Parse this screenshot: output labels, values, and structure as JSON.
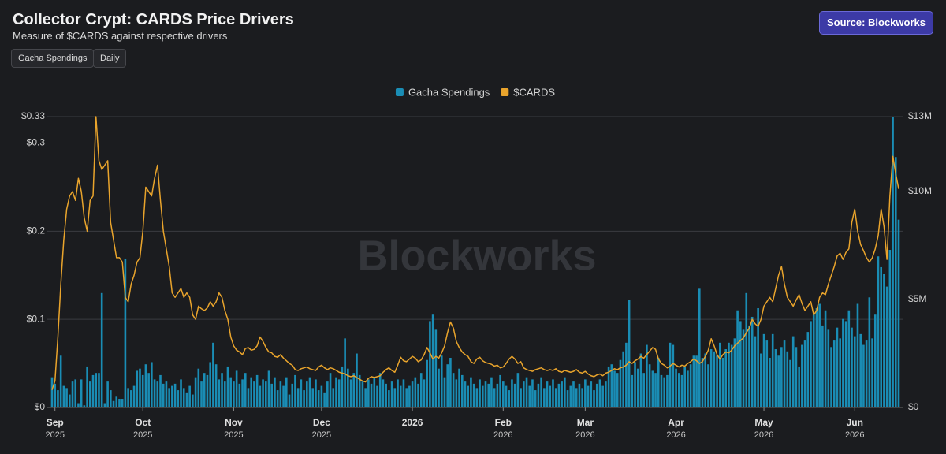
{
  "header": {
    "title": "Collector Crypt: CARDS Price Drivers",
    "subtitle": "Measure of $CARDS against respective drivers",
    "controls": [
      "Gacha Spendings",
      "Daily"
    ],
    "source": "Source: Blockworks",
    "watermark": "Blockworks"
  },
  "chart_data": {
    "type": "combo",
    "series": [
      {
        "name": "Gacha Spendings",
        "type": "bar",
        "axis": "y2",
        "color": "#1a8db5",
        "values": [
          1.4,
          1.1,
          0.8,
          2.4,
          1.0,
          0.9,
          0.6,
          1.2,
          1.3,
          0.2,
          1.3,
          0.1,
          1.9,
          1.2,
          1.5,
          1.6,
          1.6,
          5.3,
          0.2,
          1.2,
          0.8,
          0.3,
          0.5,
          0.4,
          0.4,
          6.9,
          0.9,
          0.8,
          1.0,
          1.7,
          1.8,
          1.5,
          2.0,
          1.6,
          2.1,
          1.3,
          1.2,
          1.5,
          1.1,
          1.2,
          0.9,
          1.0,
          1.1,
          0.8,
          1.3,
          0.9,
          0.7,
          1.0,
          0.6,
          1.4,
          1.8,
          1.2,
          1.6,
          1.5,
          2.1,
          3.0,
          2.0,
          1.3,
          1.6,
          1.2,
          1.9,
          1.4,
          1.2,
          1.7,
          1.1,
          1.3,
          1.6,
          0.9,
          1.4,
          1.2,
          1.5,
          1.0,
          1.3,
          1.2,
          1.7,
          1.1,
          1.4,
          0.8,
          1.2,
          1.0,
          1.4,
          0.6,
          1.1,
          1.5,
          0.9,
          1.3,
          0.8,
          1.2,
          1.4,
          0.9,
          1.3,
          0.8,
          1.0,
          0.7,
          1.2,
          1.6,
          0.9,
          1.4,
          1.3,
          1.9,
          3.2,
          1.8,
          1.3,
          1.6,
          2.5,
          1.5,
          1.2,
          0.9,
          1.3,
          1.1,
          1.4,
          1.0,
          1.6,
          1.3,
          1.1,
          0.8,
          1.2,
          0.9,
          1.3,
          1.0,
          1.3,
          0.9,
          1.0,
          1.2,
          1.4,
          1.1,
          1.6,
          1.3,
          2.2,
          4.0,
          4.3,
          3.6,
          1.8,
          2.4,
          1.4,
          2.0,
          2.3,
          1.6,
          1.3,
          1.8,
          1.5,
          1.2,
          1.0,
          1.4,
          1.1,
          0.9,
          1.3,
          1.0,
          1.2,
          1.1,
          1.4,
          0.9,
          1.1,
          1.5,
          1.2,
          1.0,
          0.8,
          1.3,
          1.1,
          1.6,
          0.9,
          1.2,
          1.4,
          1.0,
          1.3,
          0.8,
          1.1,
          1.4,
          0.9,
          1.2,
          1.0,
          1.3,
          0.9,
          1.1,
          1.2,
          1.4,
          0.8,
          1.0,
          1.2,
          0.9,
          1.1,
          0.9,
          1.3,
          1.0,
          1.2,
          0.8,
          1.1,
          1.3,
          1.0,
          1.2,
          1.9,
          2.0,
          1.7,
          1.6,
          2.2,
          2.6,
          3.0,
          5.0,
          1.5,
          2.1,
          1.8,
          2.5,
          1.6,
          2.9,
          2.0,
          1.7,
          1.6,
          2.3,
          1.5,
          1.4,
          1.5,
          3.0,
          2.9,
          1.8,
          1.6,
          1.5,
          1.9,
          1.7,
          2.0,
          2.4,
          2.4,
          5.5,
          2.3,
          2.5,
          2.0,
          2.7,
          2.6,
          2.4,
          3.0,
          2.3,
          2.7,
          3.0,
          2.9,
          3.2,
          4.5,
          4.0,
          3.6,
          5.3,
          3.8,
          4.2,
          3.3,
          4.6,
          2.5,
          3.4,
          3.1,
          2.3,
          3.4,
          2.7,
          2.4,
          2.8,
          3.1,
          2.6,
          2.2,
          3.3,
          2.8,
          1.9,
          2.9,
          3.1,
          3.5,
          4.0,
          4.3,
          4.6,
          4.8,
          3.8,
          4.5,
          3.6,
          2.8,
          3.1,
          3.7,
          3.2,
          4.1,
          4.0,
          4.5,
          3.7,
          3.3,
          4.8,
          3.4,
          2.9,
          3.1,
          5.1,
          3.2,
          4.3,
          7.0,
          6.5,
          6.2,
          5.6,
          7.3,
          13.47,
          11.6,
          8.7
        ]
      },
      {
        "name": "$CARDS",
        "type": "line",
        "axis": "y",
        "color": "#e9a42c",
        "values": [
          0.02,
          0.03,
          0.08,
          0.14,
          0.19,
          0.225,
          0.24,
          0.245,
          0.235,
          0.26,
          0.245,
          0.215,
          0.2,
          0.235,
          0.24,
          0.33,
          0.28,
          0.27,
          0.275,
          0.28,
          0.21,
          0.19,
          0.17,
          0.17,
          0.165,
          0.125,
          0.12,
          0.14,
          0.15,
          0.165,
          0.17,
          0.2,
          0.25,
          0.245,
          0.24,
          0.26,
          0.275,
          0.235,
          0.2,
          0.18,
          0.16,
          0.13,
          0.125,
          0.13,
          0.135,
          0.125,
          0.13,
          0.125,
          0.105,
          0.1,
          0.115,
          0.112,
          0.11,
          0.113,
          0.12,
          0.115,
          0.12,
          0.13,
          0.125,
          0.11,
          0.1,
          0.08,
          0.07,
          0.065,
          0.063,
          0.06,
          0.067,
          0.068,
          0.065,
          0.066,
          0.07,
          0.08,
          0.075,
          0.068,
          0.063,
          0.062,
          0.058,
          0.057,
          0.06,
          0.056,
          0.053,
          0.05,
          0.048,
          0.043,
          0.042,
          0.044,
          0.045,
          0.046,
          0.044,
          0.043,
          0.042,
          0.046,
          0.048,
          0.045,
          0.043,
          0.045,
          0.044,
          0.042,
          0.04,
          0.039,
          0.038,
          0.036,
          0.035,
          0.036,
          0.034,
          0.032,
          0.03,
          0.029,
          0.033,
          0.035,
          0.034,
          0.035,
          0.036,
          0.04,
          0.043,
          0.045,
          0.042,
          0.04,
          0.048,
          0.057,
          0.053,
          0.052,
          0.055,
          0.058,
          0.056,
          0.052,
          0.054,
          0.06,
          0.068,
          0.062,
          0.055,
          0.058,
          0.056,
          0.062,
          0.07,
          0.085,
          0.097,
          0.09,
          0.075,
          0.068,
          0.063,
          0.06,
          0.058,
          0.052,
          0.05,
          0.055,
          0.057,
          0.053,
          0.051,
          0.05,
          0.049,
          0.047,
          0.048,
          0.045,
          0.046,
          0.05,
          0.055,
          0.058,
          0.055,
          0.05,
          0.052,
          0.045,
          0.043,
          0.042,
          0.041,
          0.043,
          0.044,
          0.045,
          0.043,
          0.042,
          0.043,
          0.042,
          0.044,
          0.041,
          0.04,
          0.042,
          0.041,
          0.04,
          0.041,
          0.043,
          0.04,
          0.039,
          0.041,
          0.038,
          0.036,
          0.035,
          0.037,
          0.038,
          0.036,
          0.039,
          0.04,
          0.042,
          0.044,
          0.043,
          0.045,
          0.046,
          0.048,
          0.052,
          0.05,
          0.053,
          0.055,
          0.058,
          0.056,
          0.06,
          0.064,
          0.068,
          0.066,
          0.055,
          0.05,
          0.048,
          0.045,
          0.047,
          0.05,
          0.048,
          0.046,
          0.048,
          0.047,
          0.05,
          0.052,
          0.055,
          0.053,
          0.05,
          0.052,
          0.058,
          0.065,
          0.078,
          0.07,
          0.06,
          0.055,
          0.06,
          0.063,
          0.062,
          0.065,
          0.07,
          0.073,
          0.076,
          0.079,
          0.085,
          0.09,
          0.1,
          0.095,
          0.092,
          0.1,
          0.115,
          0.12,
          0.125,
          0.12,
          0.135,
          0.15,
          0.16,
          0.14,
          0.125,
          0.12,
          0.115,
          0.122,
          0.128,
          0.118,
          0.11,
          0.115,
          0.12,
          0.105,
          0.11,
          0.125,
          0.13,
          0.128,
          0.14,
          0.15,
          0.16,
          0.172,
          0.175,
          0.168,
          0.176,
          0.18,
          0.21,
          0.225,
          0.2,
          0.185,
          0.178,
          0.17,
          0.165,
          0.17,
          0.18,
          0.195,
          0.225,
          0.205,
          0.168,
          0.24,
          0.285,
          0.265,
          0.248
        ]
      }
    ],
    "ylim": [
      0,
      0.33
    ],
    "yticks": [
      {
        "value": 0,
        "label": "$0"
      },
      {
        "value": 0.1,
        "label": "$0.1"
      },
      {
        "value": 0.2,
        "label": "$0.2"
      },
      {
        "value": 0.3,
        "label": "$0.3"
      },
      {
        "value": 0.33,
        "label": "$0.33"
      }
    ],
    "y2lim": [
      0,
      13.47
    ],
    "y2ticks": [
      {
        "value": 0,
        "label": "$0"
      },
      {
        "value": 5,
        "label": "$5M"
      },
      {
        "value": 10,
        "label": "$10M"
      },
      {
        "value": 13.47,
        "label": "$13M"
      }
    ],
    "xticks": [
      {
        "value": 1,
        "label": "Sep",
        "year": "2025"
      },
      {
        "value": 31,
        "label": "Oct",
        "year": "2025"
      },
      {
        "value": 62,
        "label": "Nov",
        "year": "2025"
      },
      {
        "value": 92,
        "label": "Dec",
        "year": "2025"
      },
      {
        "value": 123,
        "label": "2026"
      },
      {
        "value": 154,
        "label": "Feb",
        "year": "2026"
      },
      {
        "value": 182,
        "label": "Mar",
        "year": "2026"
      },
      {
        "value": 213,
        "label": "Apr",
        "year": "2026"
      },
      {
        "value": 243,
        "label": "May",
        "year": "2026"
      },
      {
        "value": 274,
        "label": "Jun",
        "year": "2026"
      }
    ],
    "grid": true
  }
}
